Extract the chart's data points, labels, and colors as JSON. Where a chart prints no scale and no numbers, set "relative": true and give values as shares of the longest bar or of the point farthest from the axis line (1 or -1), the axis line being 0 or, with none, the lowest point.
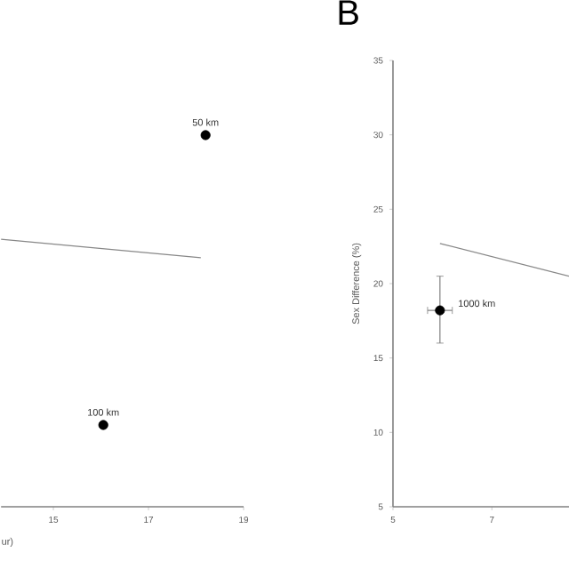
{
  "chart_data": [
    {
      "type": "scatter",
      "xlabel": "ur)",
      "relative": true,
      "xlim": [
        13.9,
        19
      ],
      "xticks": [
        15,
        17,
        19
      ],
      "series": [
        {
          "marker": "circle",
          "color": "#000000",
          "x": [
            18.2,
            16.05
          ],
          "values": [
            1,
            0.22
          ]
        },
        {
          "type": "line",
          "marker": "none",
          "color": "#888888",
          "x": [
            13.9,
            18.1
          ],
          "values": [
            0.72,
            0.67
          ]
        }
      ],
      "annotations": [
        {
          "text": "50 km",
          "x": 18.2,
          "y": 1
        },
        {
          "text": "100 km",
          "x": 16.05,
          "y": 0.22
        }
      ]
    },
    {
      "type": "scatter",
      "title": "B",
      "ylabel": "Sex Difference (%)",
      "xlim": [
        5,
        8.56
      ],
      "xticks": [
        5,
        7
      ],
      "ylim": [
        5,
        35
      ],
      "yticks": [
        5,
        10,
        15,
        20,
        25,
        30,
        35
      ],
      "series": [
        {
          "marker": "circle",
          "color": "#000000",
          "x": [
            5.95
          ],
          "values": [
            18.2
          ],
          "errors": [
            [
              16,
              20.5
            ]
          ],
          "xerrors": [
            0.25
          ]
        },
        {
          "type": "line",
          "marker": "none",
          "color": "#888888",
          "x": [
            5.95,
            8.56
          ],
          "values": [
            22.7,
            20.5
          ]
        }
      ],
      "annotations": [
        {
          "text": "1000 km",
          "x": 5.95,
          "y": 18.2
        }
      ]
    }
  ]
}
